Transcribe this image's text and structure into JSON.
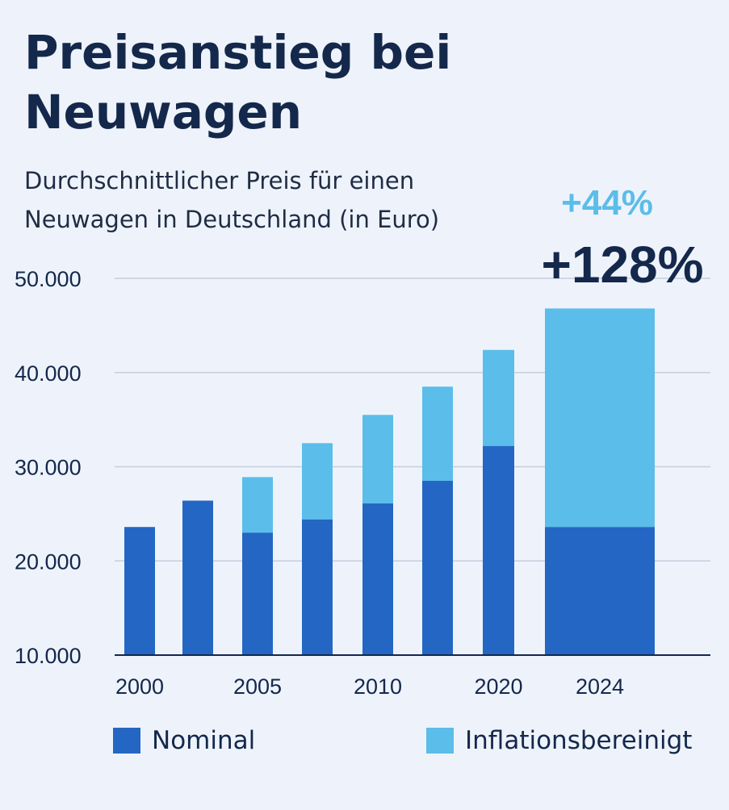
{
  "chart_data": {
    "type": "bar",
    "stacked": true,
    "title": "Preisanstieg bei Neuwagen",
    "subtitle_lines": [
      "Durchschnittlicher Preis für einen",
      "Neuwagen in Deutschland (in Euro)"
    ],
    "categories": [
      "2000",
      "",
      "2005",
      "",
      "2010",
      "",
      "2020",
      "2024"
    ],
    "series": [
      {
        "name": "Nominal",
        "color": "#2466c4",
        "values": [
          23600,
          26400,
          23000,
          24400,
          26100,
          28500,
          32200,
          23600
        ]
      },
      {
        "name": "Inflationsbereinigt",
        "color": "#5bbde9",
        "totals": [
          23600,
          26400,
          28900,
          32500,
          35500,
          38500,
          42400,
          46800
        ]
      }
    ],
    "yticks": [
      10000,
      20000,
      30000,
      40000,
      50000
    ],
    "ytick_labels": [
      "10.000",
      "20.000",
      "30.000",
      "40.000",
      "50.000"
    ],
    "ylim": [
      10000,
      50000
    ],
    "grid": true,
    "legend_position": "bottom",
    "annotations": [
      {
        "text": "+44%",
        "color": "#5bbde9"
      },
      {
        "text": "+128%",
        "color": "#14284b"
      }
    ]
  }
}
